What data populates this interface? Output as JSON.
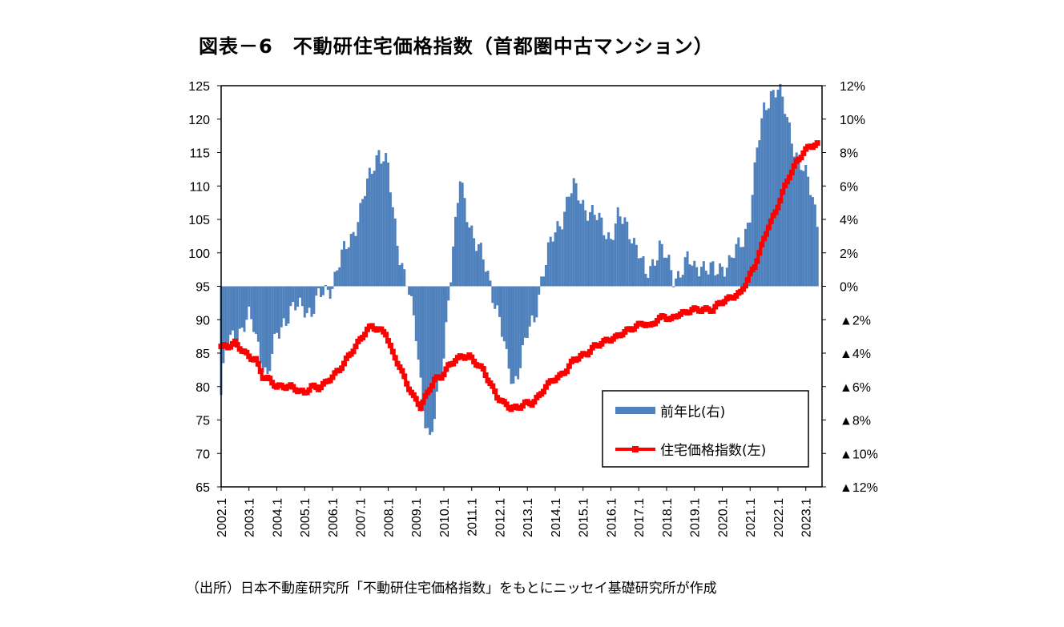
{
  "title": "図表－6　不動研住宅価格指数（首都圏中古マンション）",
  "source": "（出所）日本不動産研究所「不動研住宅価格指数」をもとにニッセイ基礎研究所が作成",
  "colors": {
    "bar": "#4F81BD",
    "line": "#FF0000",
    "frame": "#000000"
  },
  "chart_data": {
    "type": "bar+line",
    "x_tick_labels": [
      "2002.1",
      "2003.1",
      "2004.1",
      "2005.1",
      "2006.1",
      "2007.1",
      "2008.1",
      "2009.1",
      "2010.1",
      "2011.1",
      "2012.1",
      "2013.1",
      "2014.1",
      "2015.1",
      "2016.1",
      "2017.1",
      "2018.1",
      "2019.1",
      "2020.1",
      "2021.1",
      "2022.1",
      "2023.1"
    ],
    "y_left": {
      "min": 65,
      "max": 125,
      "step": 5,
      "tick_labels": [
        "65",
        "70",
        "75",
        "80",
        "85",
        "90",
        "95",
        "100",
        "105",
        "110",
        "115",
        "120",
        "125"
      ]
    },
    "y_right": {
      "min": -12,
      "max": 12,
      "step": 2,
      "tick_labels": [
        "▲12%",
        "▲10%",
        "▲8%",
        "▲6%",
        "▲4%",
        "▲2%",
        "0%",
        "2%",
        "4%",
        "6%",
        "8%",
        "10%",
        "12%"
      ]
    },
    "legend": {
      "placement": "bottom-right"
    },
    "series": [
      {
        "name": "前年比(右)",
        "kind": "bar",
        "axis": "right",
        "unit": "%",
        "keyframes": [
          [
            "2002.1",
            -6.5
          ],
          [
            "2002.3",
            -4.0
          ],
          [
            "2002.6",
            -3.0
          ],
          [
            "2002.9",
            -2.6
          ],
          [
            "2003.1",
            -2.0
          ],
          [
            "2003.3",
            -2.5
          ],
          [
            "2003.6",
            -4.0
          ],
          [
            "2003.9",
            -5.5
          ],
          [
            "2004.1",
            -3.0
          ],
          [
            "2004.4",
            -2.0
          ],
          [
            "2004.7",
            -1.5
          ],
          [
            "2005.1",
            -1.2
          ],
          [
            "2005.4",
            -1.5
          ],
          [
            "2005.7",
            -0.8
          ],
          [
            "2006.1",
            0.2
          ],
          [
            "2006.3",
            1.0
          ],
          [
            "2006.6",
            2.0
          ],
          [
            "2006.9",
            3.0
          ],
          [
            "2007.1",
            4.5
          ],
          [
            "2007.4",
            6.0
          ],
          [
            "2007.7",
            7.5
          ],
          [
            "2007.9",
            8.2
          ],
          [
            "2008.1",
            7.0
          ],
          [
            "2008.3",
            4.5
          ],
          [
            "2008.6",
            2.0
          ],
          [
            "2008.9",
            0.3
          ],
          [
            "2009.1",
            -3.0
          ],
          [
            "2009.4",
            -7.0
          ],
          [
            "2009.7",
            -9.3
          ],
          [
            "2009.9",
            -8.0
          ],
          [
            "2010.1",
            -4.0
          ],
          [
            "2010.3",
            -0.5
          ],
          [
            "2010.6",
            3.5
          ],
          [
            "2010.8",
            6.3
          ],
          [
            "2010.11",
            4.5
          ],
          [
            "2011.3",
            2.5
          ],
          [
            "2011.6",
            1.5
          ],
          [
            "2011.9",
            0.3
          ],
          [
            "2012.1",
            -2.0
          ],
          [
            "2012.4",
            -4.5
          ],
          [
            "2012.7",
            -5.8
          ],
          [
            "2012.10",
            -4.5
          ],
          [
            "2013.1",
            -3.0
          ],
          [
            "2013.4",
            -2.0
          ],
          [
            "2013.7",
            0.5
          ],
          [
            "2013.10",
            2.0
          ],
          [
            "2014.1",
            3.2
          ],
          [
            "2014.4",
            4.2
          ],
          [
            "2014.7",
            5.5
          ],
          [
            "2014.9",
            5.8
          ],
          [
            "2015.1",
            5.0
          ],
          [
            "2015.4",
            4.5
          ],
          [
            "2015.7",
            4.0
          ],
          [
            "2015.10",
            3.5
          ],
          [
            "2016.1",
            3.0
          ],
          [
            "2016.4",
            4.0
          ],
          [
            "2016.7",
            3.8
          ],
          [
            "2016.10",
            3.2
          ],
          [
            "2017.1",
            2.0
          ],
          [
            "2017.4",
            0.5
          ],
          [
            "2017.7",
            1.5
          ],
          [
            "2017.10",
            2.5
          ],
          [
            "2018.1",
            1.5
          ],
          [
            "2018.4",
            0.5
          ],
          [
            "2018.7",
            1.0
          ],
          [
            "2018.10",
            1.5
          ],
          [
            "2019.1",
            1.0
          ],
          [
            "2019.4",
            1.5
          ],
          [
            "2019.7",
            1.0
          ],
          [
            "2019.10",
            0.7
          ],
          [
            "2020.1",
            1.3
          ],
          [
            "2020.4",
            1.5
          ],
          [
            "2020.7",
            2.0
          ],
          [
            "2020.10",
            2.8
          ],
          [
            "2021.1",
            4.5
          ],
          [
            "2021.4",
            8.0
          ],
          [
            "2021.7",
            10.5
          ],
          [
            "2021.10",
            11.7
          ],
          [
            "2022.1",
            11.8
          ],
          [
            "2022.4",
            10.5
          ],
          [
            "2022.7",
            9.0
          ],
          [
            "2022.10",
            7.5
          ],
          [
            "2023.1",
            6.5
          ],
          [
            "2023.4",
            5.5
          ],
          [
            "2023.6",
            4.0
          ]
        ]
      },
      {
        "name": "住宅価格指数(左)",
        "kind": "line",
        "axis": "left",
        "unit": "index",
        "keyframes": [
          [
            "2002.1",
            86.0
          ],
          [
            "2002.4",
            86.0
          ],
          [
            "2002.7",
            86.5
          ],
          [
            "2002.10",
            85.5
          ],
          [
            "2003.1",
            84.5
          ],
          [
            "2003.4",
            84.0
          ],
          [
            "2003.7",
            81.5
          ],
          [
            "2003.10",
            81.0
          ],
          [
            "2004.1",
            80.0
          ],
          [
            "2004.4",
            80.0
          ],
          [
            "2004.7",
            80.0
          ],
          [
            "2004.10",
            79.5
          ],
          [
            "2005.1",
            79.0
          ],
          [
            "2005.4",
            80.0
          ],
          [
            "2005.7",
            79.8
          ],
          [
            "2005.10",
            80.5
          ],
          [
            "2006.1",
            81.5
          ],
          [
            "2006.4",
            82.5
          ],
          [
            "2006.7",
            84.0
          ],
          [
            "2006.10",
            85.5
          ],
          [
            "2007.1",
            87.0
          ],
          [
            "2007.4",
            88.5
          ],
          [
            "2007.6",
            89.0
          ],
          [
            "2007.9",
            88.5
          ],
          [
            "2007.12",
            88.0
          ],
          [
            "2008.3",
            85.0
          ],
          [
            "2008.6",
            83.0
          ],
          [
            "2008.9",
            80.5
          ],
          [
            "2008.12",
            78.5
          ],
          [
            "2009.3",
            77.0
          ],
          [
            "2009.6",
            79.0
          ],
          [
            "2009.9",
            81.0
          ],
          [
            "2009.12",
            81.5
          ],
          [
            "2010.3",
            83.0
          ],
          [
            "2010.6",
            84.0
          ],
          [
            "2010.9",
            84.5
          ],
          [
            "2010.12",
            84.5
          ],
          [
            "2011.3",
            83.5
          ],
          [
            "2011.6",
            82.5
          ],
          [
            "2011.9",
            80.5
          ],
          [
            "2011.12",
            78.5
          ],
          [
            "2012.3",
            77.5
          ],
          [
            "2012.6",
            76.8
          ],
          [
            "2012.9",
            76.8
          ],
          [
            "2012.12",
            77.5
          ],
          [
            "2013.3",
            77.5
          ],
          [
            "2013.6",
            78.5
          ],
          [
            "2013.9",
            80.0
          ],
          [
            "2013.12",
            81.0
          ],
          [
            "2014.3",
            81.5
          ],
          [
            "2014.6",
            82.5
          ],
          [
            "2014.9",
            84.0
          ],
          [
            "2014.12",
            84.5
          ],
          [
            "2015.3",
            85.0
          ],
          [
            "2015.6",
            86.0
          ],
          [
            "2015.9",
            86.5
          ],
          [
            "2015.12",
            87.0
          ],
          [
            "2016.3",
            87.3
          ],
          [
            "2016.6",
            88.0
          ],
          [
            "2016.9",
            88.5
          ],
          [
            "2016.12",
            89.0
          ],
          [
            "2017.3",
            89.5
          ],
          [
            "2017.6",
            89.0
          ],
          [
            "2017.9",
            90.0
          ],
          [
            "2017.12",
            90.5
          ],
          [
            "2018.3",
            90.0
          ],
          [
            "2018.6",
            90.8
          ],
          [
            "2018.9",
            91.0
          ],
          [
            "2018.12",
            91.5
          ],
          [
            "2019.3",
            91.5
          ],
          [
            "2019.6",
            91.5
          ],
          [
            "2019.9",
            91.5
          ],
          [
            "2019.12",
            92.5
          ],
          [
            "2020.3",
            93.0
          ],
          [
            "2020.6",
            93.5
          ],
          [
            "2020.9",
            94.0
          ],
          [
            "2020.12",
            96.0
          ],
          [
            "2021.3",
            98.0
          ],
          [
            "2021.6",
            101.0
          ],
          [
            "2021.9",
            104.0
          ],
          [
            "2021.12",
            106.0
          ],
          [
            "2022.3",
            109.0
          ],
          [
            "2022.6",
            111.5
          ],
          [
            "2022.9",
            113.5
          ],
          [
            "2022.12",
            115.0
          ],
          [
            "2023.3",
            116.0
          ],
          [
            "2023.6",
            116.2
          ]
        ]
      }
    ]
  }
}
